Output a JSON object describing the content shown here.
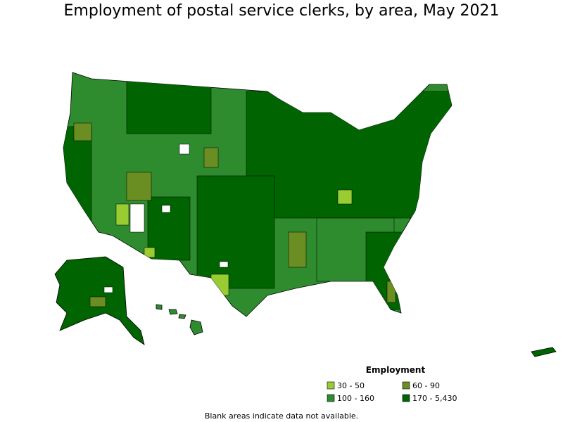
{
  "title": "Employment of postal service clerks, by area, May 2021",
  "legend": {
    "title": "Employment",
    "items": [
      {
        "label": "30 - 50",
        "color": "#99cc33"
      },
      {
        "label": "60 - 90",
        "color": "#6b8e23"
      },
      {
        "label": "100 - 160",
        "color": "#2e8b2e"
      },
      {
        "label": "170 - 5,430",
        "color": "#006400"
      }
    ]
  },
  "note": "Blank areas indicate data not available."
}
